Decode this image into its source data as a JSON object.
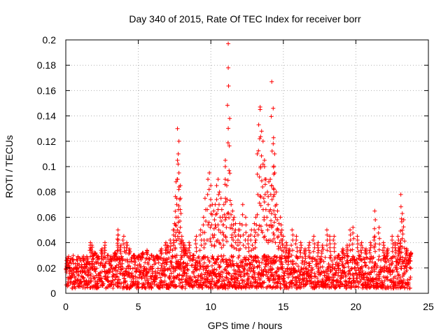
{
  "chart_data": {
    "type": "scatter",
    "title": "Day 340 of 2015, Rate Of TEC Index for receiver borr",
    "xlabel": "GPS time / hours",
    "ylabel": "ROTI / TECUs",
    "xlim": [
      0,
      25
    ],
    "ylim": [
      0,
      0.2
    ],
    "x_ticks": [
      "0",
      "5",
      "10",
      "15",
      "20",
      "25"
    ],
    "y_ticks": [
      "0",
      "0.02",
      "0.04",
      "0.06",
      "0.08",
      "0.1",
      "0.12",
      "0.14",
      "0.16",
      "0.18",
      "0.2"
    ],
    "grid": true,
    "marker": "plus",
    "color": "#ff0000",
    "series": [
      {
        "x": [
          0.1,
          0.3,
          0.5,
          0.8,
          1.0,
          1.2,
          1.5,
          1.7,
          1.8,
          2.0,
          2.2,
          2.5,
          2.7,
          2.9,
          3.1,
          3.4,
          3.6,
          3.6,
          3.8,
          4.0,
          4.2,
          4.4,
          4.7,
          5.0,
          5.3,
          5.6,
          5.9,
          6.3,
          6.6,
          6.9,
          7.0,
          7.2,
          7.4,
          7.5,
          7.6,
          7.6,
          7.7,
          7.7,
          7.8,
          7.8,
          7.9,
          7.9,
          8.0,
          8.1,
          8.2,
          8.3,
          8.5,
          8.8,
          9.0,
          9.3,
          9.5,
          9.6,
          9.8,
          9.9,
          10.0,
          10.1,
          10.2,
          10.3,
          10.4,
          10.5,
          10.6,
          10.7,
          10.8,
          10.9,
          11.0,
          11.0,
          11.1,
          11.2,
          11.2,
          11.3,
          11.4,
          11.5,
          11.6,
          11.7,
          11.9,
          12.0,
          12.2,
          12.4,
          12.6,
          12.8,
          13.0,
          13.1,
          13.2,
          13.3,
          13.4,
          13.4,
          13.5,
          13.6,
          13.7,
          13.7,
          13.8,
          13.9,
          14.0,
          14.1,
          14.2,
          14.2,
          14.3,
          14.3,
          14.4,
          14.4,
          14.5,
          14.6,
          14.7,
          14.8,
          14.9,
          15.0,
          15.2,
          15.4,
          15.6,
          15.9,
          16.2,
          16.5,
          16.8,
          17.1,
          17.4,
          17.7,
          18.0,
          18.2,
          18.5,
          18.8,
          19.1,
          19.4,
          19.6,
          19.8,
          20.1,
          20.4,
          20.7,
          21.0,
          21.3,
          21.3,
          21.6,
          21.9,
          22.2,
          22.5,
          22.7,
          22.9,
          23.0,
          23.1,
          23.1,
          23.2,
          23.3,
          23.5,
          23.7,
          23.8
        ],
        "y": [
          0.02,
          0.018,
          0.015,
          0.022,
          0.017,
          0.02,
          0.025,
          0.04,
          0.038,
          0.032,
          0.028,
          0.035,
          0.04,
          0.03,
          0.025,
          0.032,
          0.05,
          0.046,
          0.038,
          0.045,
          0.04,
          0.035,
          0.03,
          0.028,
          0.032,
          0.034,
          0.03,
          0.028,
          0.035,
          0.04,
          0.038,
          0.042,
          0.05,
          0.055,
          0.06,
          0.088,
          0.105,
          0.13,
          0.12,
          0.095,
          0.085,
          0.075,
          0.045,
          0.04,
          0.038,
          0.035,
          0.04,
          0.03,
          0.045,
          0.05,
          0.06,
          0.075,
          0.09,
          0.095,
          0.085,
          0.07,
          0.065,
          0.07,
          0.085,
          0.09,
          0.08,
          0.075,
          0.06,
          0.07,
          0.105,
          0.1,
          0.085,
          0.197,
          0.178,
          0.138,
          0.07,
          0.065,
          0.06,
          0.055,
          0.05,
          0.055,
          0.07,
          0.06,
          0.045,
          0.05,
          0.055,
          0.06,
          0.11,
          0.133,
          0.147,
          0.145,
          0.128,
          0.12,
          0.105,
          0.1,
          0.09,
          0.08,
          0.088,
          0.09,
          0.085,
          0.167,
          0.146,
          0.118,
          0.11,
          0.095,
          0.08,
          0.065,
          0.055,
          0.06,
          0.05,
          0.045,
          0.04,
          0.035,
          0.05,
          0.045,
          0.04,
          0.035,
          0.04,
          0.045,
          0.04,
          0.038,
          0.05,
          0.045,
          0.045,
          0.03,
          0.035,
          0.038,
          0.05,
          0.052,
          0.045,
          0.04,
          0.035,
          0.04,
          0.045,
          0.065,
          0.052,
          0.04,
          0.035,
          0.045,
          0.04,
          0.045,
          0.035,
          0.042,
          0.078,
          0.063,
          0.058,
          0.035,
          0.03,
          0.032
        ]
      }
    ],
    "baseline_band": {
      "x_range": [
        0.0,
        23.8
      ],
      "y_range": [
        0.004,
        0.03
      ]
    }
  }
}
